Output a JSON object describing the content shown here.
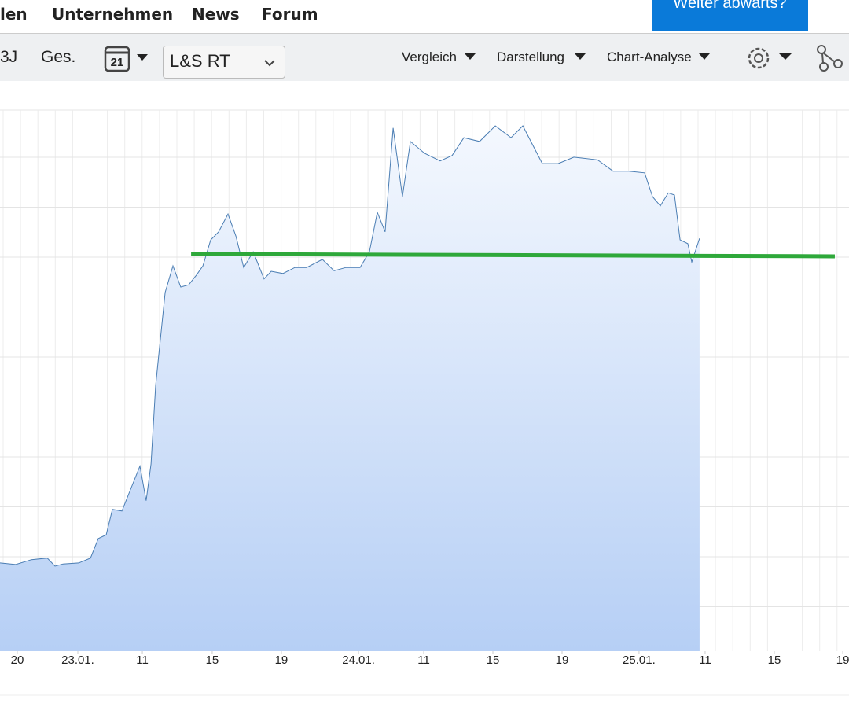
{
  "nav": {
    "links": [
      "len",
      "Unternehmen",
      "News",
      "Forum"
    ],
    "button": "Weiter abwärts?"
  },
  "toolbar": {
    "periods": [
      "3J",
      "Ges."
    ],
    "calendar": "21",
    "exchange": "L&S RT",
    "menus": [
      "Vergleich",
      "Darstellung",
      "Chart-Analyse"
    ]
  },
  "chart_data": {
    "type": "area",
    "color": "#4a7db3",
    "x": [
      0,
      0.91,
      1.82,
      2.73,
      3.18,
      3.64,
      4.55,
      5.23,
      5.68,
      6.14,
      6.5,
      7.05,
      7.5,
      8.09,
      8.45,
      8.73,
      9,
      9.55,
      10,
      10.45,
      10.91,
      11.36,
      11.73,
      12.18,
      12.64,
      13.18,
      13.64,
      14.09,
      14.64,
      15.27,
      15.68,
      16.36,
      17.05,
      17.73,
      18.64,
      19.32,
      20,
      20.82,
      21.36,
      21.82,
      22.27,
      22.73,
      23.27,
      23.73,
      24.55,
      25.45,
      26.14,
      26.82,
      27.73,
      28.64,
      29.55,
      30.23,
      31.36,
      32.27,
      33.18,
      34.55,
      35.45,
      36.36,
      37.27,
      37.73,
      38.18,
      38.64,
      39,
      39.32,
      39.77,
      40,
      40.45
    ],
    "values": [
      16.3,
      16.0,
      16.9,
      17.2,
      15.7,
      16.1,
      16.3,
      17.2,
      20.8,
      21.5,
      26.2,
      25.9,
      29.5,
      34.2,
      27.8,
      34.6,
      49.1,
      66.3,
      71.2,
      67.3,
      67.7,
      69.5,
      71.2,
      76.0,
      77.5,
      80.8,
      76.7,
      70.9,
      73.8,
      68.8,
      70.2,
      69.8,
      70.9,
      70.9,
      72.4,
      70.3,
      70.9,
      70.9,
      73.8,
      81.1,
      77.5,
      96.7,
      84.0,
      94.2,
      92.0,
      90.6,
      91.6,
      94.9,
      94.2,
      97.1,
      94.9,
      97.1,
      90.1,
      90.1,
      91.3,
      90.8,
      88.7,
      88.7,
      88.4,
      84.0,
      82.3,
      84.7,
      84.3,
      76.0,
      75.3,
      71.9,
      76.3
    ],
    "xlim": [
      0,
      49.09
    ],
    "ylim": [
      0,
      100
    ],
    "xticks": [
      {
        "value": 1.0,
        "label": "20"
      },
      {
        "value": 4.5,
        "label": "23.01."
      },
      {
        "value": 8.23,
        "label": "11"
      },
      {
        "value": 12.27,
        "label": "15"
      },
      {
        "value": 16.27,
        "label": "19"
      },
      {
        "value": 20.73,
        "label": "24.01."
      },
      {
        "value": 24.5,
        "label": "11"
      },
      {
        "value": 28.5,
        "label": "15"
      },
      {
        "value": 32.5,
        "label": "19"
      },
      {
        "value": 36.95,
        "label": "25.01."
      },
      {
        "value": 40.77,
        "label": "11"
      },
      {
        "value": 44.77,
        "label": "15"
      },
      {
        "value": 48.73,
        "label": "19"
      }
    ],
    "trend_line": {
      "color": "#2ea83a",
      "x": [
        11.05,
        48.27
      ],
      "y": [
        73.4,
        72.97
      ]
    }
  }
}
